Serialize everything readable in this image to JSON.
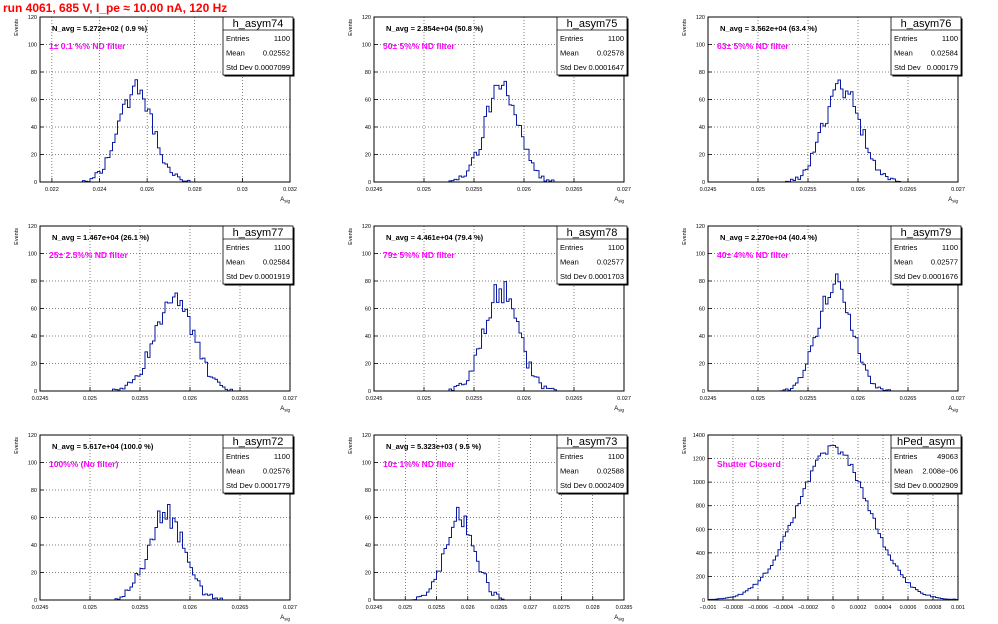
{
  "run_title": "run 4061,   685 V, I_pe ≈ 10.00 nA, 120 Hz",
  "colors": {
    "hist": "#0a1aa0",
    "annotation": "#ff00ff",
    "title": "#ff0000",
    "frame": "#000000",
    "grid": "#000000"
  },
  "chart_data": [
    {
      "type": "bar",
      "name": "h_asym74",
      "ylabel": "Events",
      "xlabel": "A_{sig}",
      "stats": {
        "entries_label": "Entries",
        "entries": "1100",
        "mean_label": "Mean",
        "mean": "0.02552",
        "std_label": "Std Dev",
        "std": "0.0007099"
      },
      "navg": "N_avg = 5.272e+02 ( 0.9 %)",
      "filter": "1± 0.1 %% ND filter",
      "xlim": [
        0.0215,
        0.032
      ],
      "ylim": [
        0,
        120
      ],
      "xticks": [
        0.022,
        0.024,
        0.026,
        0.028,
        0.03,
        0.032
      ],
      "xtick_labels": [
        "0.022",
        "0.024",
        "0.026",
        "0.028",
        "0.03",
        "0.032"
      ],
      "yticks": [
        0,
        20,
        40,
        60,
        80,
        100,
        120
      ],
      "mean": 0.02552,
      "sigma": 0.00071,
      "peak": 68,
      "seed": 74
    },
    {
      "type": "bar",
      "name": "h_asym75",
      "ylabel": "Events",
      "xlabel": "A_{sig}",
      "stats": {
        "entries_label": "Entries",
        "entries": "1100",
        "mean_label": "Mean",
        "mean": "0.02578",
        "std_label": "Std Dev",
        "std": "0.0001647"
      },
      "navg": "N_avg = 2.854e+04 (50.8 %)",
      "filter": "50± 5%% ND filter",
      "xlim": [
        0.0245,
        0.027
      ],
      "ylim": [
        0,
        120
      ],
      "xticks": [
        0.0245,
        0.025,
        0.0255,
        0.026,
        0.0265,
        0.027
      ],
      "xtick_labels": [
        "0.0245",
        "0.025",
        "0.0255",
        "0.026",
        "0.0265",
        "0.027"
      ],
      "yticks": [
        0,
        20,
        40,
        60,
        80,
        100,
        120
      ],
      "mean": 0.02578,
      "sigma": 0.000165,
      "peak": 70,
      "seed": 75
    },
    {
      "type": "bar",
      "name": "h_asym76",
      "ylabel": "Events",
      "xlabel": "A_{sig}",
      "stats": {
        "entries_label": "Entries",
        "entries": "1100",
        "mean_label": "Mean",
        "mean": "0.02584",
        "std_label": "Std Dev",
        "std": "0.000179"
      },
      "navg": "N_avg = 3.562e+04 (63.4 %)",
      "filter": "63± 5%% ND filter",
      "xlim": [
        0.0245,
        0.027
      ],
      "ylim": [
        0,
        120
      ],
      "xticks": [
        0.0245,
        0.025,
        0.0255,
        0.026,
        0.0265,
        0.027
      ],
      "xtick_labels": [
        "0.0245",
        "0.025",
        "0.0255",
        "0.026",
        "0.0265",
        "0.027"
      ],
      "yticks": [
        0,
        20,
        40,
        60,
        80,
        100,
        120
      ],
      "mean": 0.02584,
      "sigma": 0.000179,
      "peak": 70,
      "seed": 76
    },
    {
      "type": "bar",
      "name": "h_asym77",
      "ylabel": "Events",
      "xlabel": "A_{sig}",
      "stats": {
        "entries_label": "Entries",
        "entries": "1100",
        "mean_label": "Mean",
        "mean": "0.02584",
        "std_label": "Std Dev",
        "std": "0.0001919"
      },
      "navg": "N_avg = 1.467e+04 (26.1 %)",
      "filter": "25± 2.5%% ND filter",
      "xlim": [
        0.0245,
        0.027
      ],
      "ylim": [
        0,
        120
      ],
      "xticks": [
        0.0245,
        0.025,
        0.0255,
        0.026,
        0.0265,
        0.027
      ],
      "xtick_labels": [
        "0.0245",
        "0.025",
        "0.0255",
        "0.026",
        "0.0265",
        "0.027"
      ],
      "yticks": [
        0,
        20,
        40,
        60,
        80,
        100,
        120
      ],
      "mean": 0.02584,
      "sigma": 0.000192,
      "peak": 68,
      "seed": 77
    },
    {
      "type": "bar",
      "name": "h_asym78",
      "ylabel": "Events",
      "xlabel": "A_{sig}",
      "stats": {
        "entries_label": "Entries",
        "entries": "1100",
        "mean_label": "Mean",
        "mean": "0.02577",
        "std_label": "Std Dev",
        "std": "0.0001703"
      },
      "navg": "N_avg = 4.461e+04 (79.4 %)",
      "filter": "79± 5%% ND filter",
      "xlim": [
        0.0245,
        0.027
      ],
      "ylim": [
        0,
        120
      ],
      "xticks": [
        0.0245,
        0.025,
        0.0255,
        0.026,
        0.0265,
        0.027
      ],
      "xtick_labels": [
        "0.0245",
        "0.025",
        "0.0255",
        "0.026",
        "0.0265",
        "0.027"
      ],
      "yticks": [
        0,
        20,
        40,
        60,
        80,
        100,
        120
      ],
      "mean": 0.02577,
      "sigma": 0.00017,
      "peak": 74,
      "seed": 78
    },
    {
      "type": "bar",
      "name": "h_asym79",
      "ylabel": "Events",
      "xlabel": "A_{sig}",
      "stats": {
        "entries_label": "Entries",
        "entries": "1100",
        "mean_label": "Mean",
        "mean": "0.02577",
        "std_label": "Std Dev",
        "std": "0.0001676"
      },
      "navg": "N_avg = 2.270e+04 (40.4 %)",
      "filter": "40± 4%% ND filter",
      "xlim": [
        0.0245,
        0.027
      ],
      "ylim": [
        0,
        120
      ],
      "xticks": [
        0.0245,
        0.025,
        0.0255,
        0.026,
        0.0265,
        0.027
      ],
      "xtick_labels": [
        "0.0245",
        "0.025",
        "0.0255",
        "0.026",
        "0.0265",
        "0.027"
      ],
      "yticks": [
        0,
        20,
        40,
        60,
        80,
        100,
        120
      ],
      "mean": 0.02577,
      "sigma": 0.000168,
      "peak": 76,
      "seed": 79
    },
    {
      "type": "bar",
      "name": "h_asym72",
      "ylabel": "Events",
      "xlabel": "A_{sig}",
      "stats": {
        "entries_label": "Entries",
        "entries": "1100",
        "mean_label": "Mean",
        "mean": "0.02576",
        "std_label": "Std Dev",
        "std": "0.0001779"
      },
      "navg": "N_avg = 5.617e+04 (100.0 %)",
      "filter": "100%% (No filter)",
      "xlim": [
        0.0245,
        0.027
      ],
      "ylim": [
        0,
        120
      ],
      "xticks": [
        0.0245,
        0.025,
        0.0255,
        0.026,
        0.0265,
        0.027
      ],
      "xtick_labels": [
        "0.0245",
        "0.025",
        "0.0255",
        "0.026",
        "0.0265",
        "0.027"
      ],
      "yticks": [
        0,
        20,
        40,
        60,
        80,
        100,
        120
      ],
      "mean": 0.02576,
      "sigma": 0.000178,
      "peak": 62,
      "seed": 72
    },
    {
      "type": "bar",
      "name": "h_asym73",
      "ylabel": "Events",
      "xlabel": "A_{sig}",
      "stats": {
        "entries_label": "Entries",
        "entries": "1100",
        "mean_label": "Mean",
        "mean": "0.02588",
        "std_label": "Std Dev",
        "std": "0.0002409"
      },
      "navg": "N_avg = 5.323e+03 ( 9.5 %)",
      "filter": "10± 1%% ND filter",
      "xlim": [
        0.0245,
        0.0285
      ],
      "ylim": [
        0,
        120
      ],
      "xticks": [
        0.0245,
        0.025,
        0.0255,
        0.026,
        0.0265,
        0.027,
        0.0275,
        0.028,
        0.0285
      ],
      "xtick_labels": [
        "0.0245",
        "0.025",
        "0.0255",
        "0.026",
        "0.0265",
        "0.027",
        "0.0275",
        "0.028",
        "0.0285"
      ],
      "yticks": [
        0,
        20,
        40,
        60,
        80,
        100,
        120
      ],
      "mean": 0.02588,
      "sigma": 0.00024,
      "peak": 62,
      "seed": 73
    },
    {
      "type": "bar",
      "name": "hPed_asym",
      "ylabel": "Events",
      "xlabel": "",
      "stats": {
        "entries_label": "Entries",
        "entries": "49063",
        "mean_label": "Mean",
        "mean": "2.008e−06",
        "std_label": "Std Dev",
        "std": "0.0002909"
      },
      "navg": "",
      "filter": "Shutter Closerd",
      "xlim": [
        -0.001,
        0.001
      ],
      "ylim": [
        0,
        1400
      ],
      "xticks": [
        -0.001,
        -0.0008,
        -0.0006,
        -0.0004,
        -0.0002,
        0,
        0.0002,
        0.0004,
        0.0006,
        0.0008,
        0.001
      ],
      "xtick_labels": [
        "−0.001",
        "−0.0008",
        "−0.0006",
        "−0.0004",
        "−0.0002",
        "0",
        "0.0002",
        "0.0004",
        "0.0006",
        "0.0008",
        "0.001"
      ],
      "yticks": [
        0,
        200,
        400,
        600,
        800,
        1000,
        1200,
        1400
      ],
      "mean": 0.0,
      "sigma": 0.00029,
      "peak": 1280,
      "seed": 99
    }
  ]
}
